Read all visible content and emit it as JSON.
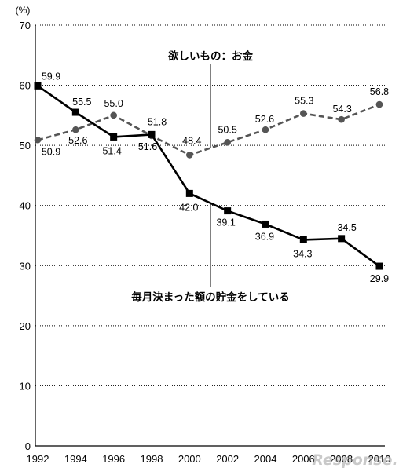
{
  "chart_data": {
    "type": "line",
    "ylabel": "(%)",
    "ylim": [
      0,
      70
    ],
    "yticks": [
      0,
      10,
      20,
      30,
      40,
      50,
      60,
      70
    ],
    "grid": true,
    "categories": [
      "1992",
      "1994",
      "1996",
      "1998",
      "2000",
      "2002",
      "2004",
      "2006",
      "2008",
      "2010"
    ],
    "series": [
      {
        "name": "欲しいもの：お金",
        "line_style": "dashed",
        "marker": "circle",
        "color": "#555555",
        "values": [
          50.9,
          52.6,
          55.0,
          51.6,
          48.4,
          50.5,
          52.6,
          55.3,
          54.3,
          56.8
        ]
      },
      {
        "name": "毎月決まった額の貯金をしている",
        "line_style": "solid",
        "marker": "square",
        "color": "#000000",
        "values": [
          59.9,
          55.5,
          51.4,
          51.8,
          42.0,
          39.1,
          36.9,
          34.3,
          34.5,
          29.9
        ]
      }
    ]
  },
  "watermark": "Response."
}
